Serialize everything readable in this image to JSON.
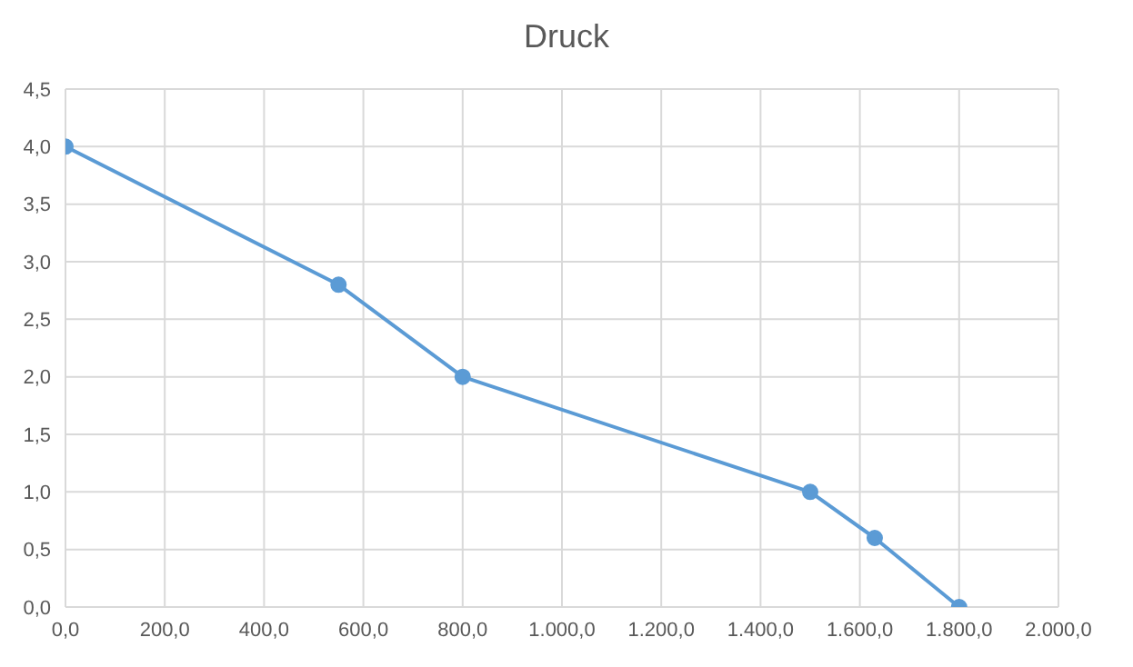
{
  "chart_data": {
    "type": "line",
    "title": "Druck",
    "x": [
      0,
      550,
      800,
      1500,
      1630,
      1800
    ],
    "series": [
      {
        "color": "#5b9bd5",
        "values": [
          4.0,
          2.8,
          2.0,
          1.0,
          0.6,
          0.0
        ]
      }
    ],
    "xlim": [
      0,
      2000
    ],
    "xticks": [
      {
        "value": 0,
        "label": "0,0"
      },
      {
        "value": 200,
        "label": "200,0"
      },
      {
        "value": 400,
        "label": "400,0"
      },
      {
        "value": 600,
        "label": "600,0"
      },
      {
        "value": 800,
        "label": "800,0"
      },
      {
        "value": 1000,
        "label": "1.000,0"
      },
      {
        "value": 1200,
        "label": "1.200,0"
      },
      {
        "value": 1400,
        "label": "1.400,0"
      },
      {
        "value": 1600,
        "label": "1.600,0"
      },
      {
        "value": 1800,
        "label": "1.800,0"
      },
      {
        "value": 2000,
        "label": "2.000,0"
      }
    ],
    "ylim": [
      0,
      4.5
    ],
    "yticks": [
      {
        "value": 0,
        "label": "0,0"
      },
      {
        "value": 0.5,
        "label": "0,5"
      },
      {
        "value": 1,
        "label": "1,0"
      },
      {
        "value": 1.5,
        "label": "1,5"
      },
      {
        "value": 2,
        "label": "2,0"
      },
      {
        "value": 2.5,
        "label": "2,5"
      },
      {
        "value": 3,
        "label": "3,0"
      },
      {
        "value": 3.5,
        "label": "3,5"
      },
      {
        "value": 4,
        "label": "4,0"
      },
      {
        "value": 4.5,
        "label": "4,5"
      }
    ],
    "grid": true,
    "marker": "circle",
    "line_style": "solid",
    "legend": false
  }
}
